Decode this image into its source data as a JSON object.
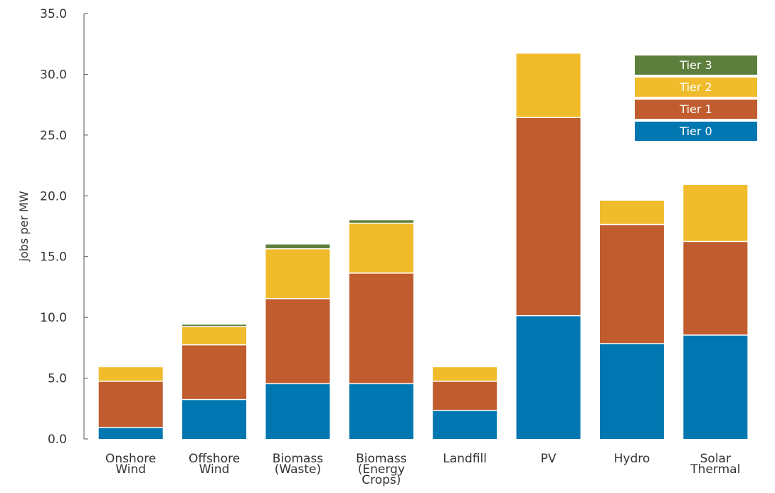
{
  "chart_data": {
    "type": "bar",
    "stacked": true,
    "title": "",
    "xlabel": "",
    "ylabel": "jobs per MW",
    "ylim": [
      0,
      35
    ],
    "yticks": [
      "0.0",
      "5.0",
      "10.0",
      "15.0",
      "20.0",
      "25.0",
      "30.0",
      "35.0"
    ],
    "grid": false,
    "legend_position": "top-right",
    "categories": [
      [
        "Onshore",
        "Wind"
      ],
      [
        "Offshore",
        "Wind"
      ],
      [
        "Biomass",
        "(Waste)"
      ],
      [
        "Biomass",
        "(Energy",
        "Crops)"
      ],
      [
        "Landfill"
      ],
      [
        "PV"
      ],
      [
        "Hydro"
      ],
      [
        "Solar",
        "Thermal"
      ]
    ],
    "series": [
      {
        "name": "Tier 0",
        "color": "#0077b0",
        "values": [
          0.9,
          3.2,
          4.5,
          4.5,
          2.3,
          10.1,
          7.8,
          8.5
        ]
      },
      {
        "name": "Tier 1",
        "color": "#c05c2e",
        "values": [
          3.8,
          4.5,
          7.0,
          9.1,
          2.4,
          16.3,
          9.8,
          7.7
        ]
      },
      {
        "name": "Tier 2",
        "color": "#f0bc2c",
        "values": [
          1.2,
          1.5,
          4.1,
          4.1,
          1.2,
          5.3,
          2.0,
          4.7
        ]
      },
      {
        "name": "Tier 3",
        "color": "#5d7f3e",
        "values": [
          0.1,
          0.2,
          0.4,
          0.3,
          0.0,
          0.0,
          0.0,
          0.0
        ]
      }
    ]
  }
}
